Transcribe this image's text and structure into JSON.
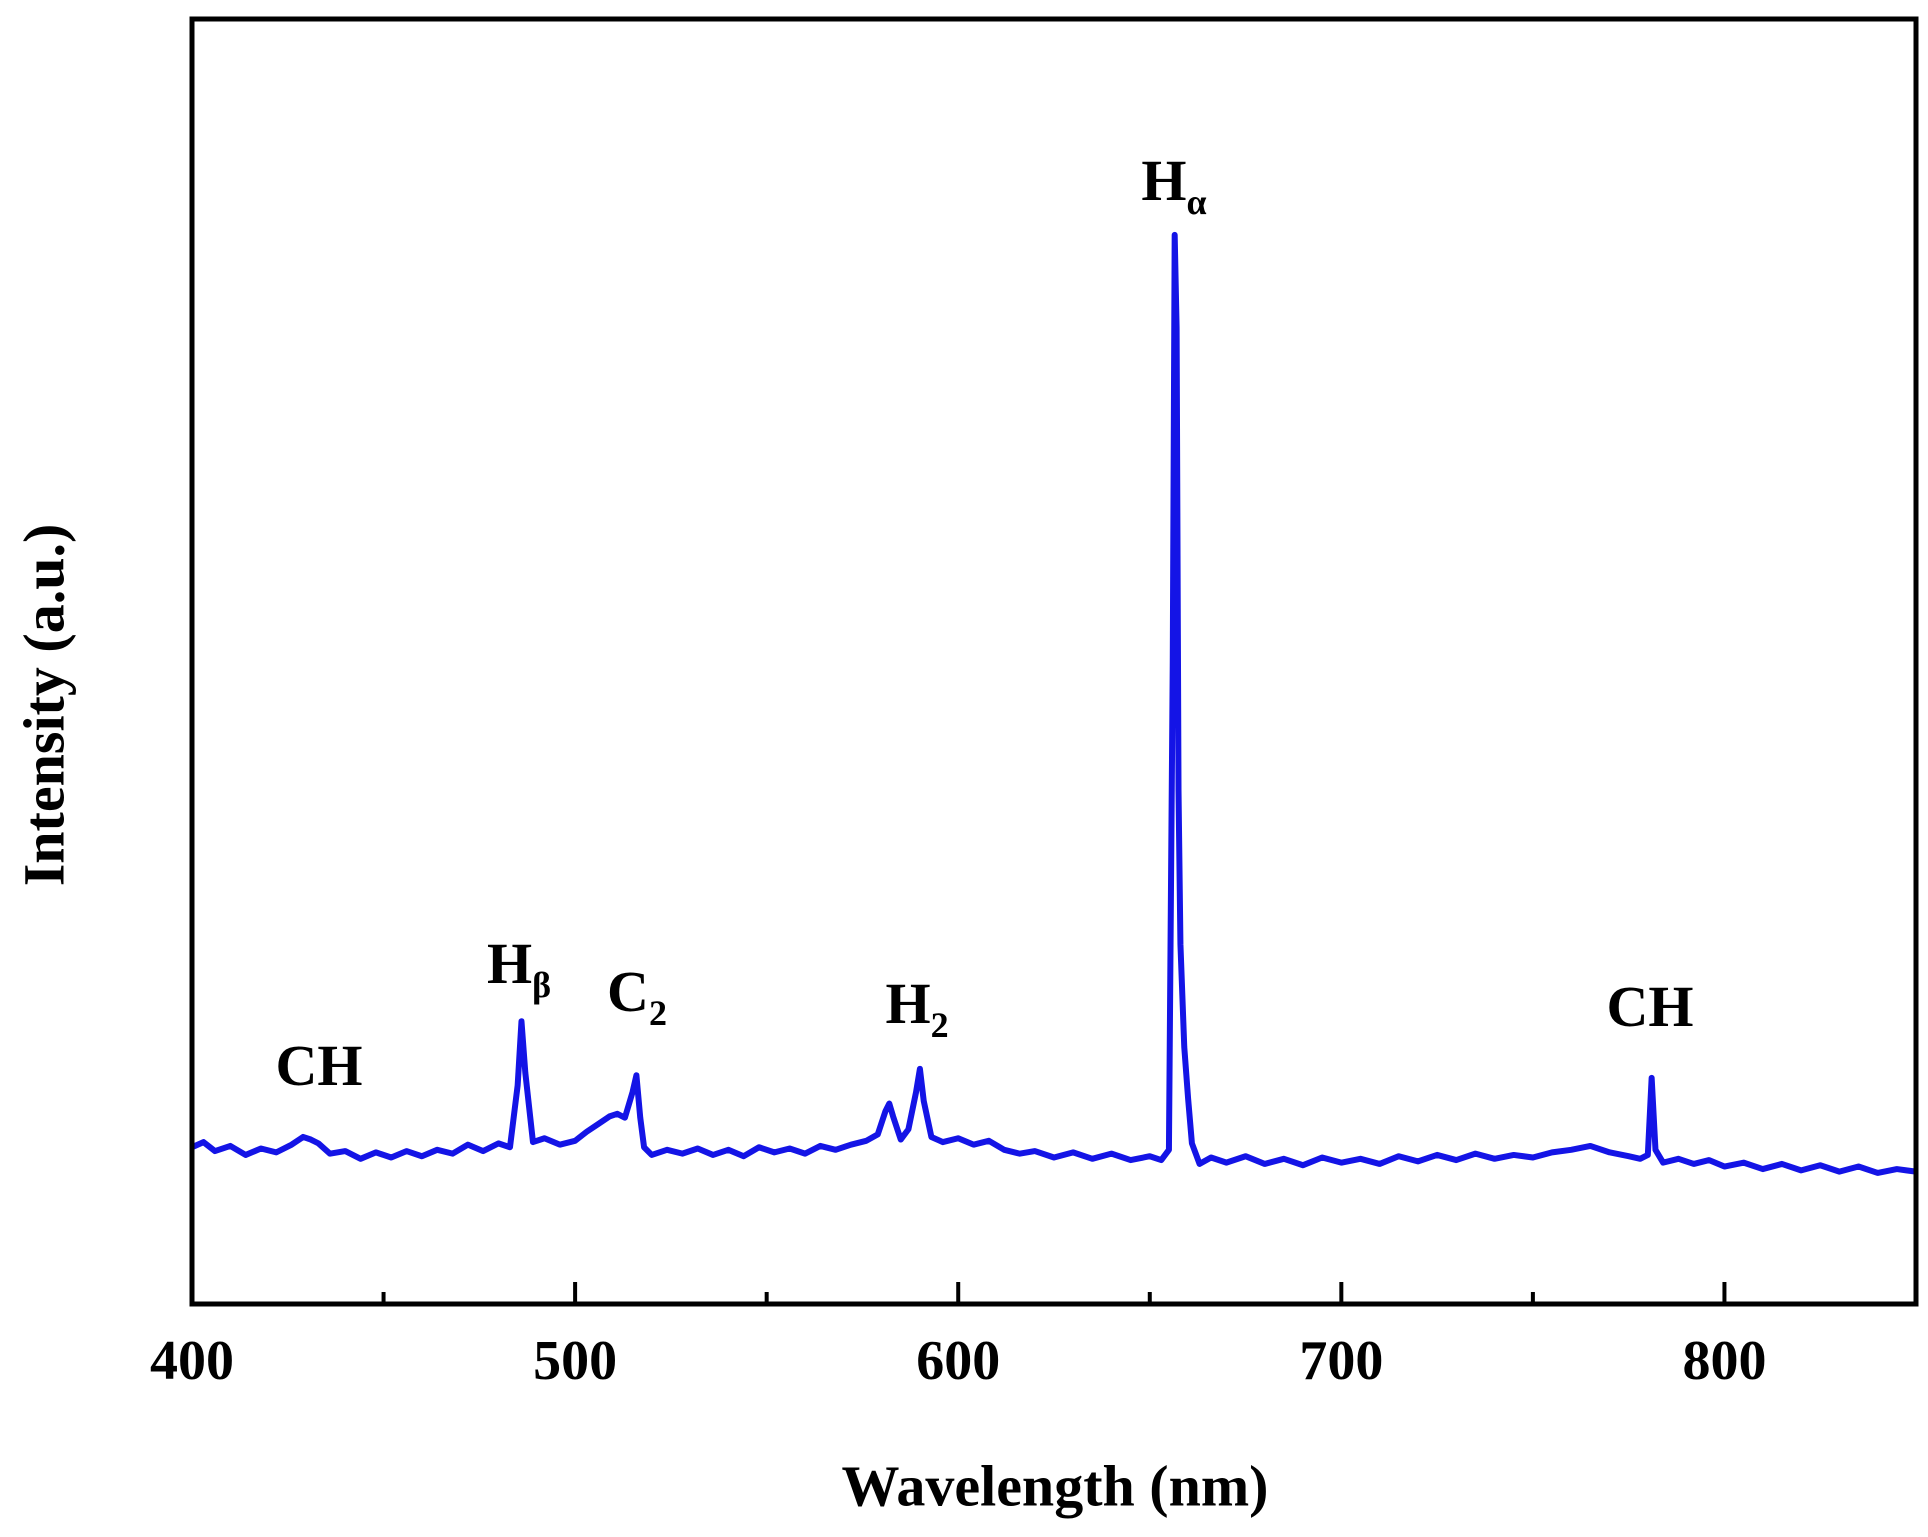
{
  "chart_data": {
    "type": "line",
    "x_label": "Wavelength (nm)",
    "y_label": "Intensity (a.u.)",
    "xlim": [
      400,
      850
    ],
    "xticks": [
      400,
      500,
      600,
      700,
      800
    ],
    "xminorticks": [
      450,
      550,
      650,
      750
    ],
    "ylim": [
      0,
      100
    ],
    "series": [
      {
        "color": "#1414e6",
        "x": [
          400,
          403,
          406,
          410,
          414,
          418,
          422,
          426,
          429,
          431,
          433,
          436,
          440,
          444,
          448,
          452,
          456,
          460,
          464,
          468,
          472,
          476,
          480,
          483,
          485,
          486,
          487,
          489,
          492,
          496,
          500,
          503,
          506,
          509,
          511,
          513,
          515,
          516,
          517,
          518,
          520,
          524,
          528,
          532,
          536,
          540,
          544,
          548,
          552,
          556,
          560,
          564,
          568,
          572,
          576,
          579,
          581,
          582,
          583,
          585,
          587,
          589,
          590,
          591,
          593,
          596,
          600,
          604,
          608,
          612,
          616,
          620,
          625,
          630,
          635,
          640,
          645,
          650,
          653,
          655,
          656,
          656.5,
          657,
          657.5,
          658,
          659,
          660,
          661,
          663,
          666,
          670,
          675,
          680,
          685,
          690,
          695,
          700,
          705,
          710,
          715,
          720,
          725,
          730,
          735,
          740,
          745,
          750,
          755,
          760,
          765,
          770,
          775,
          778,
          780,
          781,
          782,
          784,
          788,
          792,
          796,
          800,
          805,
          810,
          815,
          820,
          825,
          830,
          835,
          840,
          845,
          850
        ],
        "values": [
          12.2,
          12.6,
          11.9,
          12.3,
          11.6,
          12.1,
          11.8,
          12.4,
          13.0,
          12.8,
          12.5,
          11.7,
          11.9,
          11.3,
          11.8,
          11.4,
          11.9,
          11.5,
          12.0,
          11.7,
          12.4,
          11.9,
          12.5,
          12.2,
          17.0,
          22.0,
          18.0,
          12.6,
          12.9,
          12.4,
          12.7,
          13.4,
          14.0,
          14.6,
          14.8,
          14.5,
          16.5,
          17.8,
          14.5,
          12.2,
          11.6,
          12.0,
          11.7,
          12.1,
          11.6,
          12.0,
          11.5,
          12.2,
          11.8,
          12.1,
          11.7,
          12.3,
          12.0,
          12.4,
          12.7,
          13.2,
          15.0,
          15.6,
          14.6,
          12.8,
          13.6,
          16.5,
          18.3,
          15.8,
          13.0,
          12.6,
          12.9,
          12.4,
          12.7,
          12.0,
          11.7,
          11.9,
          11.4,
          11.8,
          11.3,
          11.7,
          11.2,
          11.5,
          11.2,
          12.0,
          50,
          83.2,
          76,
          40,
          28,
          20,
          16,
          12.5,
          10.9,
          11.4,
          11.0,
          11.5,
          10.9,
          11.3,
          10.8,
          11.4,
          11.0,
          11.3,
          10.9,
          11.5,
          11.1,
          11.6,
          11.2,
          11.7,
          11.3,
          11.6,
          11.4,
          11.8,
          12.0,
          12.3,
          11.8,
          11.5,
          11.3,
          11.6,
          17.6,
          12.0,
          11.0,
          11.3,
          10.9,
          11.2,
          10.7,
          11.0,
          10.5,
          10.9,
          10.4,
          10.8,
          10.3,
          10.7,
          10.2,
          10.5,
          10.3
        ]
      }
    ],
    "annotations": [
      {
        "text": "CH"
      },
      {
        "text": "H",
        "sub": "β"
      },
      {
        "text": "C",
        "sub": "2"
      },
      {
        "text": "H",
        "sub": "2"
      },
      {
        "text": "H",
        "sub": "α"
      },
      {
        "text": "CH"
      }
    ]
  }
}
